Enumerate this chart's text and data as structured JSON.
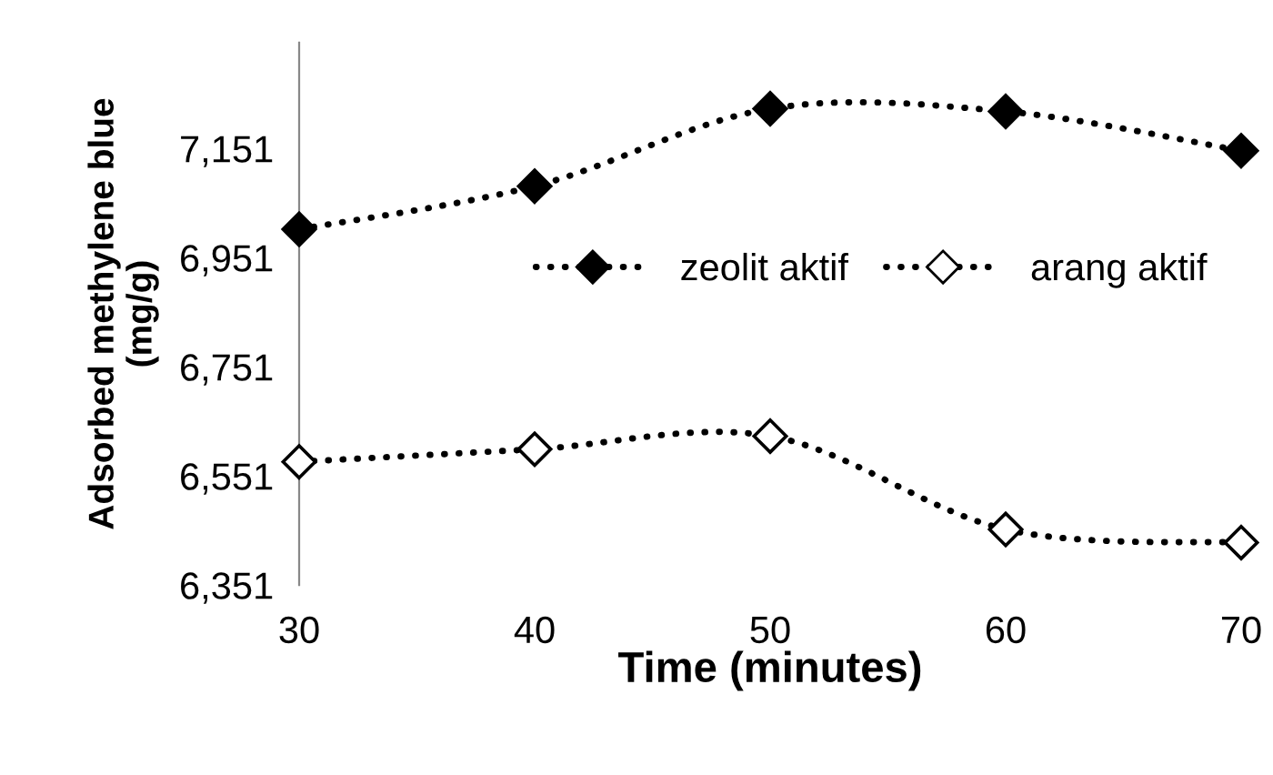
{
  "chart_data": {
    "type": "line",
    "xlabel": "Time (minutes)",
    "ylabel": "Adsorbed methylene blue\n(mg/g)",
    "x": [
      30,
      40,
      50,
      60,
      70
    ],
    "series": [
      {
        "name": "zeolit aktif",
        "color": "#000000",
        "marker": "diamond",
        "values": [
          7003,
          7082,
          7224,
          7219,
          7147
        ]
      },
      {
        "name": "arang aktif",
        "color": "#000000",
        "marker": "diamond",
        "values": [
          6577,
          6600,
          6624,
          6453,
          6429
        ]
      }
    ],
    "xlim": [
      30,
      70
    ],
    "xticks": [
      30,
      40,
      50,
      60,
      70
    ],
    "ylim": [
      6351,
      7345
    ],
    "yticks": [
      {
        "value": 6351,
        "label": "6,351"
      },
      {
        "value": 6551,
        "label": "6,551"
      },
      {
        "value": 6751,
        "label": "6,751"
      },
      {
        "value": 6951,
        "label": "6,951"
      },
      {
        "value": 7151,
        "label": "7,151"
      }
    ],
    "line_style": "dotted",
    "grid": false,
    "legend": "right"
  }
}
